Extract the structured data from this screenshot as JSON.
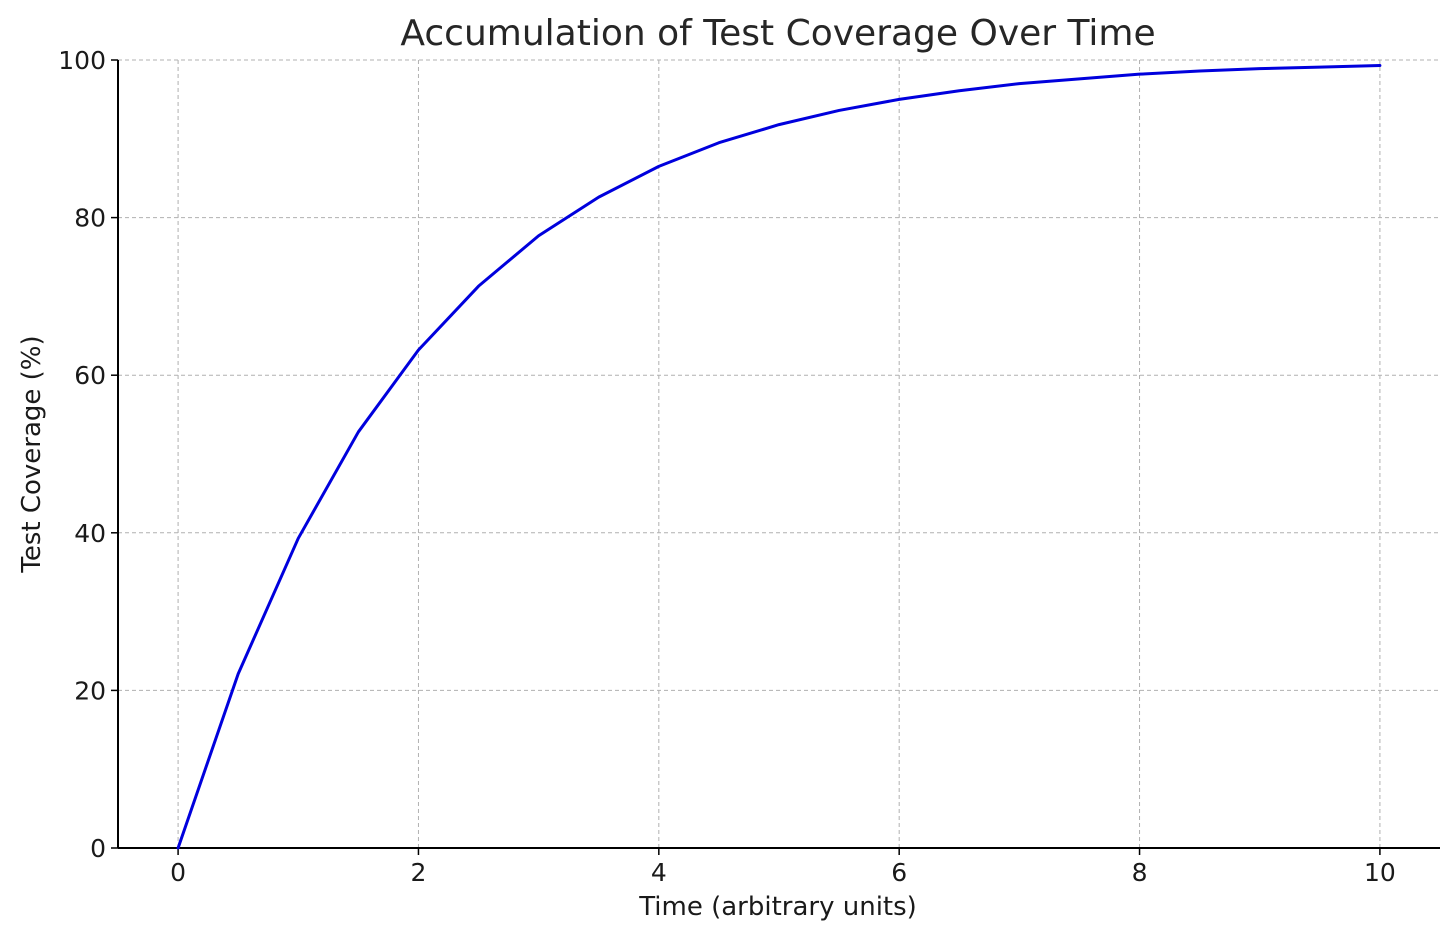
{
  "chart_data": {
    "type": "line",
    "title": "Accumulation of Test Coverage Over Time",
    "xlabel": "Time (arbitrary units)",
    "ylabel": "Test Coverage (%)",
    "xlim": [
      -0.5,
      10.5
    ],
    "ylim": [
      0,
      100
    ],
    "x_ticks": [
      0,
      2,
      4,
      6,
      8,
      10
    ],
    "y_ticks": [
      0,
      20,
      40,
      60,
      80,
      100
    ],
    "x_tick_labels": [
      "0",
      "2",
      "4",
      "6",
      "8",
      "10"
    ],
    "y_tick_labels": [
      "0",
      "20",
      "40",
      "60",
      "80",
      "100"
    ],
    "grid": true,
    "legend": "none",
    "series": [
      {
        "color": "#0000dd",
        "x": [
          0,
          0.5,
          1,
          1.5,
          2,
          2.5,
          3,
          3.5,
          4,
          4.5,
          5,
          5.5,
          6,
          6.5,
          7,
          7.5,
          8,
          8.5,
          9,
          9.5,
          10
        ],
        "y": [
          0,
          22.1,
          39.3,
          52.8,
          63.2,
          71.3,
          77.7,
          82.6,
          86.5,
          89.5,
          91.8,
          93.6,
          95.0,
          96.1,
          97.0,
          97.6,
          98.2,
          98.6,
          98.9,
          99.1,
          99.3
        ]
      }
    ]
  }
}
